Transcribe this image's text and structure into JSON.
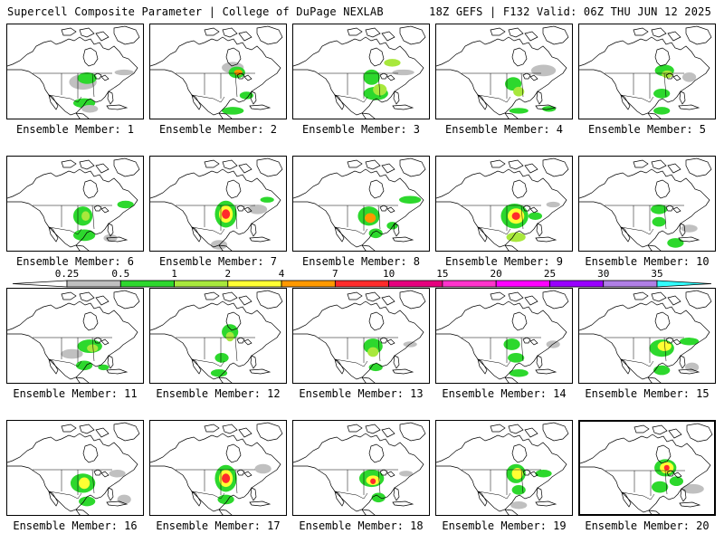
{
  "header": {
    "left": "Supercell Composite Parameter | College of DuPage NEXLAB",
    "right": "18Z GEFS | F132 Valid: 06Z THU JUN 12 2025"
  },
  "legend": {
    "thresholds": [
      "0.25",
      "0.5",
      "1",
      "2",
      "4",
      "7",
      "10",
      "15",
      "20",
      "25",
      "30",
      "35"
    ],
    "colors": [
      "#c0c0c0",
      "#2dd82d",
      "#a8e83c",
      "#ffff33",
      "#ff9900",
      "#ff2b2b",
      "#e6007e",
      "#ff33cc",
      "#ff00ff",
      "#9900ff",
      "#b07fe6",
      "#33ffff"
    ]
  },
  "members": [
    {
      "label": "Ensemble Member: 1",
      "blobs": [
        [
          0.55,
          0.6,
          0.1,
          0.08,
          0
        ],
        [
          0.58,
          0.56,
          0.07,
          0.06,
          1
        ],
        [
          0.56,
          0.82,
          0.08,
          0.05,
          1
        ],
        [
          0.6,
          0.88,
          0.06,
          0.04,
          0
        ],
        [
          0.85,
          0.5,
          0.07,
          0.03,
          0
        ]
      ]
    },
    {
      "label": "Ensemble Member: 2",
      "blobs": [
        [
          0.6,
          0.45,
          0.08,
          0.06,
          0
        ],
        [
          0.63,
          0.5,
          0.06,
          0.06,
          1
        ],
        [
          0.64,
          0.5,
          0.03,
          0.03,
          4
        ],
        [
          0.7,
          0.74,
          0.05,
          0.04,
          1
        ],
        [
          0.6,
          0.9,
          0.08,
          0.04,
          1
        ]
      ]
    },
    {
      "label": "Ensemble Member: 3",
      "blobs": [
        [
          0.57,
          0.55,
          0.06,
          0.08,
          1
        ],
        [
          0.6,
          0.72,
          0.09,
          0.07,
          1
        ],
        [
          0.63,
          0.68,
          0.05,
          0.06,
          2
        ],
        [
          0.72,
          0.4,
          0.06,
          0.04,
          2
        ],
        [
          0.8,
          0.5,
          0.08,
          0.03,
          0
        ]
      ]
    },
    {
      "label": "Ensemble Member: 4",
      "blobs": [
        [
          0.56,
          0.62,
          0.06,
          0.07,
          1
        ],
        [
          0.6,
          0.7,
          0.04,
          0.05,
          2
        ],
        [
          0.78,
          0.48,
          0.09,
          0.06,
          0
        ],
        [
          0.6,
          0.9,
          0.07,
          0.03,
          1
        ],
        [
          0.82,
          0.88,
          0.05,
          0.03,
          1
        ]
      ]
    },
    {
      "label": "Ensemble Member: 5",
      "blobs": [
        [
          0.62,
          0.48,
          0.07,
          0.06,
          1
        ],
        [
          0.64,
          0.52,
          0.04,
          0.04,
          2
        ],
        [
          0.6,
          0.72,
          0.06,
          0.05,
          1
        ],
        [
          0.8,
          0.55,
          0.05,
          0.05,
          0
        ],
        [
          0.6,
          0.9,
          0.06,
          0.04,
          1
        ]
      ]
    },
    {
      "label": "Ensemble Member: 6",
      "blobs": [
        [
          0.55,
          0.62,
          0.07,
          0.1,
          1
        ],
        [
          0.57,
          0.62,
          0.03,
          0.05,
          2
        ],
        [
          0.56,
          0.82,
          0.08,
          0.06,
          1
        ],
        [
          0.86,
          0.5,
          0.06,
          0.04,
          1
        ],
        [
          0.75,
          0.85,
          0.05,
          0.04,
          0
        ]
      ]
    },
    {
      "label": "Ensemble Member: 7",
      "blobs": [
        [
          0.55,
          0.6,
          0.08,
          0.14,
          1
        ],
        [
          0.55,
          0.6,
          0.05,
          0.09,
          3
        ],
        [
          0.55,
          0.6,
          0.03,
          0.05,
          5
        ],
        [
          0.78,
          0.55,
          0.07,
          0.05,
          0
        ],
        [
          0.85,
          0.45,
          0.05,
          0.03,
          1
        ],
        [
          0.5,
          0.92,
          0.06,
          0.05,
          0
        ]
      ]
    },
    {
      "label": "Ensemble Member: 8",
      "blobs": [
        [
          0.55,
          0.62,
          0.08,
          0.1,
          1
        ],
        [
          0.56,
          0.64,
          0.04,
          0.05,
          4
        ],
        [
          0.6,
          0.8,
          0.05,
          0.05,
          1
        ],
        [
          0.85,
          0.45,
          0.08,
          0.04,
          1
        ],
        [
          0.72,
          0.72,
          0.04,
          0.04,
          1
        ]
      ]
    },
    {
      "label": "Ensemble Member: 9",
      "blobs": [
        [
          0.57,
          0.62,
          0.1,
          0.13,
          1
        ],
        [
          0.58,
          0.62,
          0.06,
          0.08,
          3
        ],
        [
          0.58,
          0.62,
          0.03,
          0.04,
          5
        ],
        [
          0.58,
          0.84,
          0.07,
          0.05,
          2
        ],
        [
          0.85,
          0.5,
          0.05,
          0.03,
          0
        ],
        [
          0.72,
          0.62,
          0.05,
          0.04,
          1
        ]
      ]
    },
    {
      "label": "Ensemble Member: 10",
      "blobs": [
        [
          0.58,
          0.55,
          0.06,
          0.05,
          1
        ],
        [
          0.58,
          0.68,
          0.05,
          0.05,
          1
        ],
        [
          0.7,
          0.9,
          0.06,
          0.05,
          1
        ],
        [
          0.8,
          0.75,
          0.06,
          0.04,
          0
        ]
      ]
    },
    {
      "label": "Ensemble Member: 11",
      "blobs": [
        [
          0.6,
          0.6,
          0.09,
          0.07,
          1
        ],
        [
          0.62,
          0.62,
          0.04,
          0.04,
          2
        ],
        [
          0.47,
          0.68,
          0.08,
          0.05,
          0
        ],
        [
          0.56,
          0.8,
          0.06,
          0.05,
          1
        ],
        [
          0.7,
          0.82,
          0.04,
          0.03,
          1
        ]
      ]
    },
    {
      "label": "Ensemble Member: 12",
      "blobs": [
        [
          0.58,
          0.45,
          0.06,
          0.08,
          1
        ],
        [
          0.58,
          0.5,
          0.03,
          0.05,
          2
        ],
        [
          0.52,
          0.72,
          0.05,
          0.05,
          1
        ],
        [
          0.5,
          0.88,
          0.06,
          0.04,
          1
        ]
      ]
    },
    {
      "label": "Ensemble Member: 13",
      "blobs": [
        [
          0.58,
          0.6,
          0.07,
          0.08,
          1
        ],
        [
          0.58,
          0.66,
          0.04,
          0.05,
          2
        ],
        [
          0.6,
          0.82,
          0.05,
          0.04,
          1
        ],
        [
          0.85,
          0.58,
          0.05,
          0.03,
          0
        ]
      ]
    },
    {
      "label": "Ensemble Member: 14",
      "blobs": [
        [
          0.55,
          0.58,
          0.06,
          0.06,
          1
        ],
        [
          0.58,
          0.72,
          0.06,
          0.05,
          1
        ],
        [
          0.85,
          0.58,
          0.05,
          0.04,
          0
        ],
        [
          0.6,
          0.88,
          0.07,
          0.04,
          1
        ]
      ]
    },
    {
      "label": "Ensemble Member: 15",
      "blobs": [
        [
          0.6,
          0.62,
          0.09,
          0.09,
          1
        ],
        [
          0.62,
          0.6,
          0.05,
          0.05,
          3
        ],
        [
          0.8,
          0.55,
          0.07,
          0.04,
          1
        ],
        [
          0.6,
          0.85,
          0.06,
          0.05,
          1
        ],
        [
          0.82,
          0.82,
          0.05,
          0.05,
          0
        ]
      ]
    },
    {
      "label": "Ensemble Member: 16",
      "blobs": [
        [
          0.55,
          0.65,
          0.09,
          0.1,
          1
        ],
        [
          0.56,
          0.65,
          0.04,
          0.06,
          3
        ],
        [
          0.58,
          0.84,
          0.06,
          0.05,
          1
        ],
        [
          0.8,
          0.55,
          0.06,
          0.04,
          0
        ],
        [
          0.85,
          0.82,
          0.05,
          0.05,
          0
        ]
      ]
    },
    {
      "label": "Ensemble Member: 17",
      "blobs": [
        [
          0.55,
          0.6,
          0.08,
          0.14,
          1
        ],
        [
          0.55,
          0.6,
          0.05,
          0.09,
          3
        ],
        [
          0.55,
          0.6,
          0.03,
          0.05,
          5
        ],
        [
          0.55,
          0.82,
          0.06,
          0.05,
          1
        ],
        [
          0.82,
          0.5,
          0.06,
          0.05,
          0
        ]
      ]
    },
    {
      "label": "Ensemble Member: 18",
      "blobs": [
        [
          0.57,
          0.6,
          0.09,
          0.09,
          1
        ],
        [
          0.58,
          0.62,
          0.05,
          0.05,
          3
        ],
        [
          0.58,
          0.63,
          0.02,
          0.03,
          5
        ],
        [
          0.62,
          0.8,
          0.05,
          0.05,
          1
        ],
        [
          0.82,
          0.55,
          0.05,
          0.03,
          0
        ]
      ]
    },
    {
      "label": "Ensemble Member: 19",
      "blobs": [
        [
          0.58,
          0.55,
          0.07,
          0.1,
          1
        ],
        [
          0.59,
          0.55,
          0.04,
          0.06,
          3
        ],
        [
          0.6,
          0.72,
          0.05,
          0.05,
          1
        ],
        [
          0.78,
          0.55,
          0.06,
          0.04,
          1
        ],
        [
          0.6,
          0.88,
          0.06,
          0.04,
          0
        ]
      ]
    },
    {
      "label": "Ensemble Member: 20",
      "blobs": [
        [
          0.62,
          0.48,
          0.08,
          0.09,
          1
        ],
        [
          0.63,
          0.48,
          0.05,
          0.06,
          3
        ],
        [
          0.63,
          0.48,
          0.02,
          0.03,
          5
        ],
        [
          0.58,
          0.68,
          0.06,
          0.06,
          1
        ],
        [
          0.82,
          0.7,
          0.08,
          0.05,
          0
        ],
        [
          0.7,
          0.62,
          0.05,
          0.05,
          1
        ]
      ]
    }
  ]
}
